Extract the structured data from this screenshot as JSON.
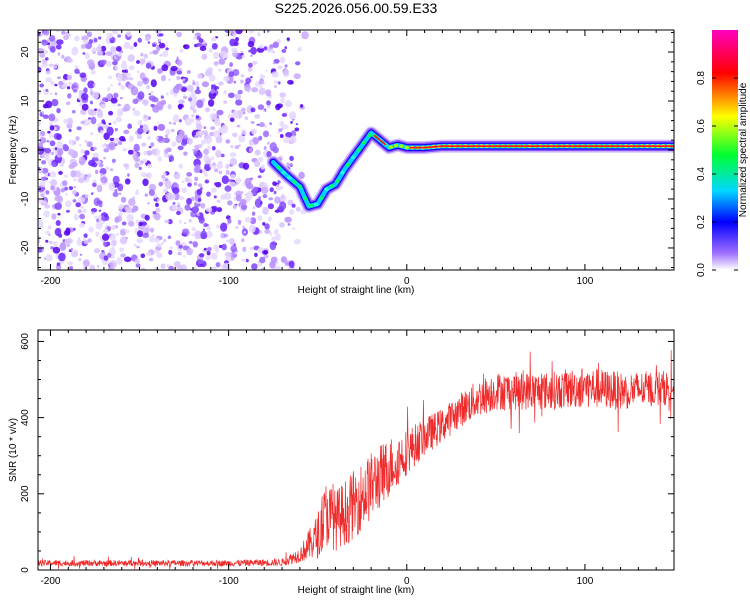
{
  "title": "S225.2026.056.00.59.E33",
  "chart_data": [
    {
      "type": "heatmap",
      "name": "spectrogram",
      "xlabel": "Height of straight line (km)",
      "ylabel": "Frequency (Hz)",
      "xlim": [
        -207,
        150
      ],
      "ylim": [
        -24.5,
        24.5
      ],
      "x_ticks": [
        -200,
        -100,
        0,
        100
      ],
      "y_ticks": [
        -20,
        -10,
        0,
        10,
        20
      ],
      "noise_region_x": [
        -207,
        -65
      ],
      "ridge": {
        "x": [
          -75,
          -68,
          -60,
          -55,
          -50,
          -45,
          -40,
          -35,
          -30,
          -25,
          -20,
          -15,
          -10,
          -5,
          0,
          10,
          20,
          40,
          60,
          80,
          100,
          120,
          140,
          150
        ],
        "y": [
          -2.5,
          -5,
          -7.5,
          -11.5,
          -11,
          -8,
          -7,
          -4,
          -1.5,
          1,
          3.5,
          2,
          0.5,
          1,
          0.5,
          0.5,
          0.8,
          0.8,
          0.8,
          0.8,
          0.8,
          0.8,
          0.8,
          0.8
        ]
      },
      "colorbar": {
        "label": "Normalized spectral amplitude",
        "range": [
          0,
          1
        ],
        "ticks": [
          0,
          0.2,
          0.4,
          0.6,
          0.8
        ],
        "tick_labels": [
          "0.0",
          "0.2",
          "0.4",
          "0.6",
          "0.8"
        ],
        "colors": [
          "#ffffff",
          "#a070ff",
          "#0000ff",
          "#00d8ff",
          "#00ff30",
          "#ffff00",
          "#ff0000",
          "#ff00c0"
        ]
      }
    },
    {
      "type": "line",
      "name": "snr",
      "xlabel": "Height of straight line (km)",
      "ylabel": "SNR (10 * v/v)",
      "xlim": [
        -207,
        150
      ],
      "ylim": [
        0,
        630
      ],
      "x_ticks": [
        -200,
        -100,
        0,
        100
      ],
      "y_ticks": [
        0,
        200,
        400,
        600
      ],
      "color": "#ee2a2a",
      "envelope": {
        "x": [
          -207,
          -150,
          -100,
          -70,
          -60,
          -50,
          -45,
          -40,
          -30,
          -20,
          -10,
          0,
          10,
          20,
          30,
          40,
          50,
          60,
          80,
          100,
          120,
          150
        ],
        "mean": [
          18,
          18,
          18,
          20,
          40,
          90,
          150,
          130,
          170,
          220,
          270,
          310,
          350,
          380,
          420,
          450,
          470,
          470,
          470,
          480,
          470,
          480
        ],
        "spread": [
          8,
          8,
          8,
          10,
          20,
          60,
          90,
          80,
          90,
          90,
          80,
          60,
          50,
          45,
          45,
          50,
          50,
          50,
          50,
          55,
          50,
          45
        ]
      }
    }
  ]
}
